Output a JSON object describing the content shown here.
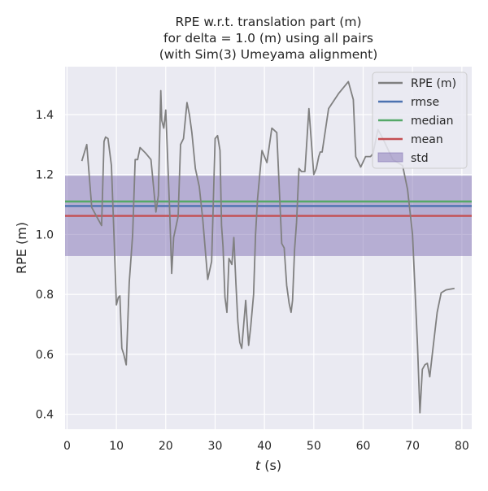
{
  "chart_data": {
    "type": "line",
    "title": "RPE w.r.t. translation part (m)\nfor delta = 1.0 (m) using all pairs\n(with Sim(3) Umeyama alignment)",
    "xlabel_italic": "t",
    "xlabel_rest": " (s)",
    "ylabel": "RPE (m)",
    "xlim": [
      -0.4,
      82.0
    ],
    "ylim": [
      0.35,
      1.56
    ],
    "xticks": [
      0,
      10,
      20,
      30,
      40,
      50,
      60,
      70,
      80
    ],
    "yticks": [
      0.4,
      0.6,
      0.8,
      1.0,
      1.2,
      1.4
    ],
    "xtick_labels": [
      "0",
      "10",
      "20",
      "30",
      "40",
      "50",
      "60",
      "70",
      "80"
    ],
    "ytick_labels": [
      "0.4",
      "0.6",
      "0.8",
      "1.0",
      "1.2",
      "1.4"
    ],
    "grid": true,
    "legend_position": "top-right",
    "legend": [
      {
        "label": "RPE (m)",
        "kind": "line",
        "color": "#808080"
      },
      {
        "label": "rmse",
        "kind": "line",
        "color": "#4c72b0"
      },
      {
        "label": "median",
        "kind": "line",
        "color": "#55a868"
      },
      {
        "label": "mean",
        "kind": "line",
        "color": "#c44e52"
      },
      {
        "label": "std",
        "kind": "patch",
        "color": "#8172b3"
      }
    ],
    "stats": {
      "rmse": 1.095,
      "median": 1.11,
      "mean": 1.062,
      "std_band": [
        0.928,
        1.196
      ]
    },
    "colors": {
      "series": "#808080",
      "rmse": "#4c72b0",
      "median": "#55a868",
      "mean": "#c44e52",
      "std": "#8172b3",
      "background": "#eaeaf2"
    },
    "series": [
      {
        "values_x": [
          3.0,
          4.0,
          5.0,
          6.0,
          7.0,
          7.5,
          7.8,
          8.3,
          9.0,
          9.5,
          10.0,
          10.4,
          10.7,
          11.1,
          11.5,
          12.0,
          12.6,
          13.0,
          13.3,
          13.8,
          14.3,
          14.8,
          16.0,
          17.0,
          18.0,
          18.5,
          19.0,
          19.2,
          19.6,
          20.0,
          20.8,
          21.2,
          21.6,
          22.5,
          23.0,
          23.6,
          24.3,
          24.8,
          25.3,
          26.0,
          26.8,
          27.5,
          28.5,
          29.3,
          30.0,
          30.5,
          31.0,
          31.3,
          31.6,
          32.0,
          32.4,
          32.8,
          33.4,
          33.8,
          34.2,
          34.6,
          35.0,
          35.4,
          36.2,
          36.8,
          37.2,
          37.8,
          38.2,
          38.6,
          39.5,
          40.5,
          41.5,
          42.5,
          43.5,
          44.0,
          44.5,
          45.0,
          45.4,
          45.7,
          46.1,
          46.5,
          47.0,
          47.5,
          48.2,
          49.0,
          50.0,
          50.5,
          51.0,
          51.3,
          51.7,
          53.0,
          55.0,
          57.0,
          58.0,
          58.5,
          59.5,
          60.5,
          61.5,
          62.0,
          63.0,
          64.0,
          66.0,
          68.0,
          69.0,
          70.0,
          70.5,
          71.0,
          71.5,
          72.0,
          72.5,
          73.0,
          73.5,
          74.0,
          74.5,
          75.0,
          75.8,
          76.3,
          76.8,
          78.5
        ],
        "values_y": [
          1.245,
          1.3,
          1.09,
          1.06,
          1.03,
          1.31,
          1.325,
          1.32,
          1.23,
          1.0,
          0.765,
          0.79,
          0.795,
          0.62,
          0.6,
          0.565,
          0.84,
          0.93,
          1.0,
          1.25,
          1.25,
          1.29,
          1.27,
          1.25,
          1.075,
          1.13,
          1.48,
          1.38,
          1.355,
          1.415,
          1.08,
          0.87,
          0.99,
          1.06,
          1.3,
          1.32,
          1.44,
          1.4,
          1.34,
          1.22,
          1.16,
          1.05,
          0.85,
          0.91,
          1.32,
          1.33,
          1.28,
          1.03,
          0.96,
          0.79,
          0.74,
          0.92,
          0.9,
          0.99,
          0.84,
          0.71,
          0.64,
          0.62,
          0.78,
          0.63,
          0.69,
          0.8,
          1.0,
          1.12,
          1.28,
          1.24,
          1.355,
          1.34,
          0.97,
          0.955,
          0.83,
          0.77,
          0.74,
          0.78,
          0.95,
          1.04,
          1.22,
          1.21,
          1.21,
          1.42,
          1.2,
          1.22,
          1.26,
          1.275,
          1.275,
          1.42,
          1.47,
          1.51,
          1.45,
          1.26,
          1.225,
          1.26,
          1.26,
          1.27,
          1.35,
          1.32,
          1.25,
          1.23,
          1.15,
          1.0,
          0.82,
          0.63,
          0.405,
          0.55,
          0.565,
          0.57,
          0.525,
          0.6,
          0.67,
          0.74,
          0.805,
          0.81,
          0.815,
          0.82
        ]
      }
    ]
  }
}
